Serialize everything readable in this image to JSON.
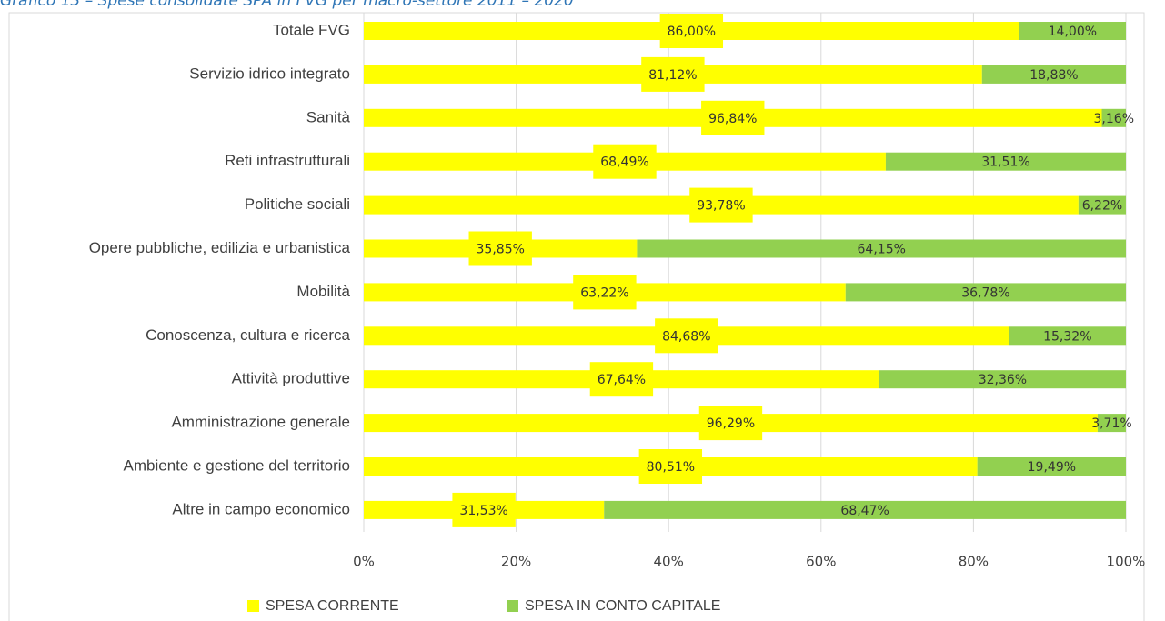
{
  "chart_data": {
    "type": "stacked_barh",
    "title": "Grafico 13 – Spese consolidate SPA in FVG per macro-settore 2011 – 2020",
    "categories": [
      "Totale FVG",
      "Servizio idrico integrato",
      "Sanità",
      "Reti infrastrutturali",
      "Politiche sociali",
      "Opere pubbliche, edilizia e urbanistica",
      "Mobilità",
      "Conoscenza, cultura e ricerca",
      "Attività produttive",
      "Amministrazione generale",
      "Ambiente e gestione del territorio",
      "Altre in campo economico"
    ],
    "series": [
      {
        "name": "SPESA CORRENTE",
        "color": "#ffff00",
        "values": [
          86.0,
          81.12,
          96.84,
          68.49,
          93.78,
          35.85,
          63.22,
          84.68,
          67.64,
          96.29,
          80.51,
          31.53
        ],
        "value_labels": [
          "86,00%",
          "81,12%",
          "96,84%",
          "68,49%",
          "93,78%",
          "35,85%",
          "63,22%",
          "84,68%",
          "67,64%",
          "96,29%",
          "80,51%",
          "31,53%"
        ]
      },
      {
        "name": "SPESA IN CONTO CAPITALE",
        "color": "#92d050",
        "values": [
          14.0,
          18.88,
          3.16,
          31.51,
          6.22,
          64.15,
          36.78,
          15.32,
          32.36,
          3.71,
          19.49,
          68.47
        ],
        "value_labels": [
          "14,00%",
          "18,88%",
          "3,16%",
          "31,51%",
          "6,22%",
          "64,15%",
          "36,78%",
          "15,32%",
          "32,36%",
          "3,71%",
          "19,49%",
          "68,47%"
        ]
      }
    ],
    "xlim": [
      0,
      100
    ],
    "xticks": [
      {
        "value": 0,
        "label": "0%"
      },
      {
        "value": 20,
        "label": "20%"
      },
      {
        "value": 40,
        "label": "40%"
      },
      {
        "value": 60,
        "label": "60%"
      },
      {
        "value": 80,
        "label": "80%"
      },
      {
        "value": 100,
        "label": "100%"
      }
    ],
    "grid": true,
    "legend": "bottom"
  }
}
